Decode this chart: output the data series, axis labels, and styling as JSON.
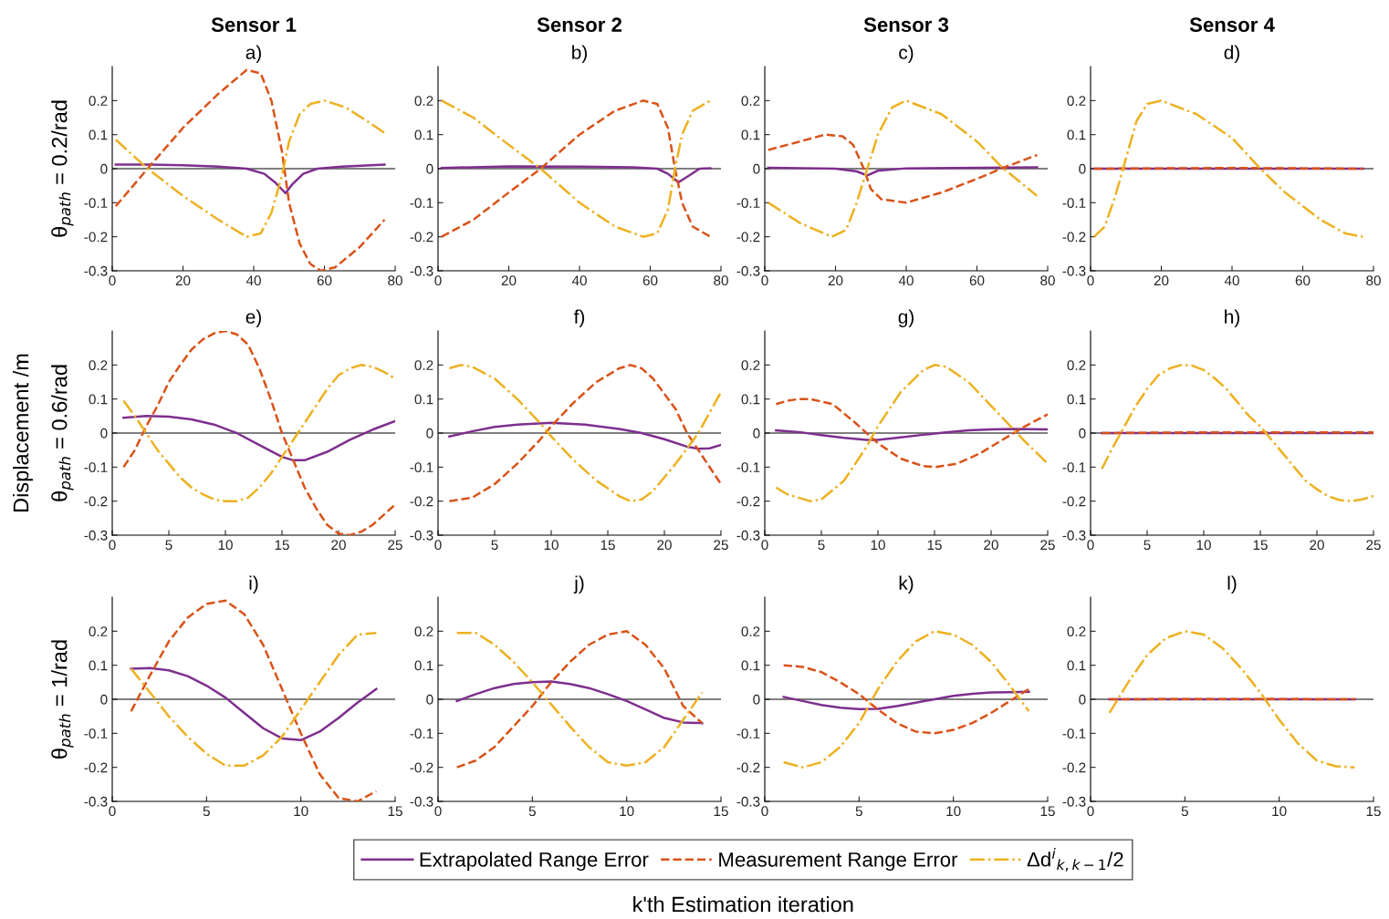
{
  "chart_data": [
    {
      "type": "line",
      "title": "Sensor 1",
      "subtitle": "a)",
      "ylabel": "θ$_{path}$ = 0.2/rad",
      "xlim": [
        0,
        80
      ],
      "xticks": [
        0,
        20,
        40,
        60,
        80
      ],
      "ylim": [
        -0.3,
        0.3
      ],
      "yticks": [
        -0.3,
        -0.2,
        -0.1,
        0,
        0.1,
        0.2
      ],
      "grid": false,
      "marker": "none",
      "ref_lines": [
        {
          "axis": "y",
          "value": 0,
          "color": "#000000"
        }
      ],
      "series": [
        {
          "color": "#7e2f8e",
          "line_style": "solid",
          "x": [
            1,
            10,
            20,
            30,
            38,
            43,
            46,
            49,
            51,
            54,
            58,
            65,
            77
          ],
          "values": [
            0.012,
            0.012,
            0.01,
            0.006,
            0.0,
            -0.015,
            -0.04,
            -0.072,
            -0.045,
            -0.015,
            0.0,
            0.006,
            0.012
          ]
        },
        {
          "color": "#d95319",
          "line_style": "dashed",
          "x": [
            1,
            10,
            20,
            30,
            38,
            42,
            45,
            48,
            50,
            53,
            56,
            59,
            63,
            70,
            77
          ],
          "values": [
            -0.11,
            0.0,
            0.12,
            0.22,
            0.29,
            0.28,
            0.2,
            0.05,
            -0.1,
            -0.22,
            -0.28,
            -0.3,
            -0.29,
            -0.23,
            -0.15
          ]
        },
        {
          "color": "#edb120",
          "line_style": "dashdot",
          "x": [
            1,
            10,
            20,
            30,
            38,
            42,
            45,
            48,
            50,
            53,
            56,
            60,
            66,
            72,
            77
          ],
          "values": [
            0.085,
            0.0,
            -0.08,
            -0.15,
            -0.2,
            -0.19,
            -0.13,
            -0.02,
            0.08,
            0.16,
            0.19,
            0.2,
            0.18,
            0.14,
            0.105
          ]
        }
      ]
    },
    {
      "type": "line",
      "title": "Sensor 2",
      "subtitle": "b)",
      "xlim": [
        0,
        80
      ],
      "xticks": [
        0,
        20,
        40,
        60,
        80
      ],
      "ylim": [
        -0.3,
        0.3
      ],
      "yticks": [
        -0.3,
        -0.2,
        -0.1,
        0,
        0.1,
        0.2
      ],
      "grid": false,
      "marker": "none",
      "ref_lines": [
        {
          "axis": "y",
          "value": 0,
          "color": "#000000"
        }
      ],
      "series": [
        {
          "color": "#7e2f8e",
          "line_style": "solid",
          "x": [
            1,
            20,
            40,
            55,
            62,
            65,
            68,
            71,
            74,
            77
          ],
          "values": [
            0.002,
            0.007,
            0.006,
            0.004,
            0.0,
            -0.015,
            -0.04,
            -0.02,
            0.0,
            0.001
          ]
        },
        {
          "color": "#d95319",
          "line_style": "dashed",
          "x": [
            1,
            10,
            20,
            29,
            40,
            50,
            58,
            62,
            65,
            67,
            69,
            72,
            77
          ],
          "values": [
            -0.2,
            -0.15,
            -0.07,
            0.0,
            0.1,
            0.17,
            0.2,
            0.19,
            0.12,
            0.0,
            -0.1,
            -0.17,
            -0.2
          ]
        },
        {
          "color": "#edb120",
          "line_style": "dashdot",
          "x": [
            1,
            10,
            20,
            29,
            40,
            50,
            58,
            62,
            65,
            67,
            69,
            72,
            77
          ],
          "values": [
            0.2,
            0.15,
            0.07,
            0.0,
            -0.1,
            -0.17,
            -0.2,
            -0.19,
            -0.12,
            0.0,
            0.1,
            0.17,
            0.2
          ]
        }
      ]
    },
    {
      "type": "line",
      "title": "Sensor 3",
      "subtitle": "c)",
      "xlim": [
        0,
        80
      ],
      "xticks": [
        0,
        20,
        40,
        60,
        80
      ],
      "ylim": [
        -0.3,
        0.3
      ],
      "yticks": [
        -0.3,
        -0.2,
        -0.1,
        0,
        0.1,
        0.2
      ],
      "grid": false,
      "marker": "none",
      "ref_lines": [
        {
          "axis": "y",
          "value": 0,
          "color": "#000000"
        }
      ],
      "series": [
        {
          "color": "#7e2f8e",
          "line_style": "solid",
          "x": [
            1,
            20,
            26,
            29,
            32,
            40,
            77
          ],
          "values": [
            0.003,
            0.0,
            -0.008,
            -0.02,
            -0.006,
            0.001,
            0.004
          ]
        },
        {
          "color": "#d95319",
          "line_style": "dashed",
          "x": [
            1,
            10,
            17,
            22,
            25,
            28,
            30,
            33,
            40,
            50,
            60,
            68,
            77
          ],
          "values": [
            0.055,
            0.08,
            0.1,
            0.095,
            0.07,
            0.0,
            -0.06,
            -0.09,
            -0.1,
            -0.07,
            -0.03,
            0.005,
            0.04
          ]
        },
        {
          "color": "#edb120",
          "line_style": "dashdot",
          "x": [
            1,
            10,
            19,
            23,
            26,
            29,
            32,
            36,
            40,
            50,
            60,
            67,
            77
          ],
          "values": [
            -0.1,
            -0.16,
            -0.2,
            -0.18,
            -0.1,
            0.0,
            0.1,
            0.18,
            0.2,
            0.16,
            0.08,
            0.005,
            -0.08
          ]
        }
      ]
    },
    {
      "type": "line",
      "title": "Sensor 4",
      "subtitle": "d)",
      "xlim": [
        0,
        80
      ],
      "xticks": [
        0,
        20,
        40,
        60,
        80
      ],
      "ylim": [
        -0.3,
        0.3
      ],
      "yticks": [
        -0.3,
        -0.2,
        -0.1,
        0,
        0.1,
        0.2
      ],
      "grid": false,
      "marker": "none",
      "ref_lines": [
        {
          "axis": "y",
          "value": 0,
          "color": "#000000"
        }
      ],
      "series": [
        {
          "color": "#7e2f8e",
          "line_style": "solid",
          "x": [
            1,
            77
          ],
          "values": [
            0.0,
            0.0
          ]
        },
        {
          "color": "#d95319",
          "line_style": "dashed",
          "x": [
            1,
            20,
            40,
            60,
            77
          ],
          "values": [
            0.0,
            0.001,
            0.002,
            0.001,
            0.0
          ]
        },
        {
          "color": "#edb120",
          "line_style": "dashdot",
          "x": [
            1,
            4,
            7,
            10,
            13,
            16,
            20,
            30,
            40,
            48,
            55,
            65,
            72,
            77
          ],
          "values": [
            -0.2,
            -0.17,
            -0.08,
            0.03,
            0.14,
            0.19,
            0.2,
            0.16,
            0.09,
            0.0,
            -0.07,
            -0.15,
            -0.19,
            -0.2
          ]
        }
      ]
    },
    {
      "type": "line",
      "title": "e)",
      "ylabel": "θ$_{path}$ = 0.6/rad",
      "annotations": [
        "Displacement /m"
      ],
      "xlim": [
        0,
        25
      ],
      "xticks": [
        0,
        5,
        10,
        15,
        20,
        25
      ],
      "ylim": [
        -0.3,
        0.3
      ],
      "yticks": [
        -0.3,
        -0.2,
        -0.1,
        0,
        0.1,
        0.2
      ],
      "grid": false,
      "marker": "none",
      "ref_lines": [
        {
          "axis": "y",
          "value": 0,
          "color": "#000000"
        }
      ],
      "series": [
        {
          "color": "#7e2f8e",
          "line_style": "solid",
          "x": [
            1,
            3,
            5,
            7,
            9,
            11,
            13,
            15,
            16,
            17,
            19,
            21,
            23,
            25
          ],
          "values": [
            0.045,
            0.05,
            0.048,
            0.04,
            0.025,
            0.0,
            -0.035,
            -0.07,
            -0.08,
            -0.08,
            -0.055,
            -0.02,
            0.01,
            0.035
          ]
        },
        {
          "color": "#d95319",
          "line_style": "dashed",
          "x": [
            1,
            2,
            3,
            4,
            5,
            6,
            7,
            8,
            9,
            10,
            11,
            12,
            13,
            14,
            15,
            16,
            17,
            18,
            19,
            20,
            21,
            22,
            23,
            24,
            25
          ],
          "values": [
            -0.1,
            -0.05,
            0.02,
            0.08,
            0.15,
            0.2,
            0.245,
            0.275,
            0.293,
            0.3,
            0.29,
            0.26,
            0.19,
            0.1,
            0.0,
            -0.08,
            -0.16,
            -0.22,
            -0.27,
            -0.295,
            -0.3,
            -0.29,
            -0.27,
            -0.24,
            -0.21
          ]
        },
        {
          "color": "#edb120",
          "line_style": "dashdot",
          "x": [
            1,
            2,
            3,
            4,
            5,
            6,
            7,
            8,
            9,
            10,
            11,
            12,
            13,
            14,
            15,
            16,
            17,
            18,
            19,
            20,
            21,
            22,
            23,
            24,
            25
          ],
          "values": [
            0.095,
            0.05,
            0.0,
            -0.05,
            -0.09,
            -0.13,
            -0.16,
            -0.18,
            -0.195,
            -0.2,
            -0.2,
            -0.19,
            -0.16,
            -0.12,
            -0.07,
            -0.02,
            0.03,
            0.08,
            0.13,
            0.17,
            0.19,
            0.2,
            0.195,
            0.18,
            0.16
          ]
        }
      ]
    },
    {
      "type": "line",
      "title": "f)",
      "xlim": [
        0,
        25
      ],
      "xticks": [
        0,
        5,
        10,
        15,
        20,
        25
      ],
      "ylim": [
        -0.3,
        0.3
      ],
      "yticks": [
        -0.3,
        -0.2,
        -0.1,
        0,
        0.1,
        0.2
      ],
      "grid": false,
      "marker": "none",
      "ref_lines": [
        {
          "axis": "y",
          "value": 0,
          "color": "#000000"
        }
      ],
      "series": [
        {
          "color": "#7e2f8e",
          "line_style": "solid",
          "x": [
            1,
            3,
            5,
            7,
            10,
            13,
            16,
            18,
            20,
            22,
            23,
            24,
            25
          ],
          "values": [
            -0.01,
            0.005,
            0.018,
            0.025,
            0.03,
            0.025,
            0.012,
            0.0,
            -0.018,
            -0.04,
            -0.046,
            -0.045,
            -0.035
          ]
        },
        {
          "color": "#d95319",
          "line_style": "dashed",
          "x": [
            1,
            3,
            5,
            7,
            9,
            10,
            12,
            14,
            16,
            17,
            18,
            19,
            21,
            22,
            23,
            25
          ],
          "values": [
            -0.2,
            -0.19,
            -0.15,
            -0.09,
            -0.02,
            0.02,
            0.09,
            0.15,
            0.19,
            0.2,
            0.19,
            0.16,
            0.07,
            0.0,
            -0.05,
            -0.15
          ]
        },
        {
          "color": "#edb120",
          "line_style": "dashdot",
          "x": [
            1,
            2,
            3,
            5,
            7,
            9,
            10,
            12,
            14,
            16,
            17,
            18,
            19,
            21,
            23,
            25
          ],
          "values": [
            0.19,
            0.2,
            0.195,
            0.16,
            0.1,
            0.03,
            -0.01,
            -0.08,
            -0.14,
            -0.185,
            -0.2,
            -0.195,
            -0.17,
            -0.09,
            0.0,
            0.12
          ]
        }
      ]
    },
    {
      "type": "line",
      "title": "g)",
      "xlim": [
        0,
        25
      ],
      "xticks": [
        0,
        5,
        10,
        15,
        20,
        25
      ],
      "ylim": [
        -0.3,
        0.3
      ],
      "yticks": [
        -0.3,
        -0.2,
        -0.1,
        0,
        0.1,
        0.2
      ],
      "grid": false,
      "marker": "none",
      "ref_lines": [
        {
          "axis": "y",
          "value": 0,
          "color": "#000000"
        }
      ],
      "series": [
        {
          "color": "#7e2f8e",
          "line_style": "solid",
          "x": [
            1,
            3,
            5,
            7,
            9,
            10,
            12,
            14,
            16,
            18,
            20,
            22,
            25
          ],
          "values": [
            0.008,
            0.003,
            -0.006,
            -0.014,
            -0.02,
            -0.02,
            -0.013,
            -0.005,
            0.002,
            0.008,
            0.011,
            0.012,
            0.011
          ]
        },
        {
          "color": "#d95319",
          "line_style": "dashed",
          "x": [
            1,
            2,
            3,
            4,
            6,
            8,
            10,
            12,
            14,
            15,
            17,
            19,
            21,
            23,
            25
          ],
          "values": [
            0.085,
            0.095,
            0.1,
            0.1,
            0.085,
            0.03,
            -0.03,
            -0.075,
            -0.097,
            -0.1,
            -0.09,
            -0.06,
            -0.02,
            0.02,
            0.055
          ]
        },
        {
          "color": "#edb120",
          "line_style": "dashdot",
          "x": [
            1,
            2,
            4,
            5,
            7,
            9,
            10,
            12,
            14,
            15,
            16,
            18,
            20,
            22,
            23,
            25
          ],
          "values": [
            -0.16,
            -0.18,
            -0.2,
            -0.195,
            -0.14,
            -0.04,
            0.02,
            0.12,
            0.185,
            0.2,
            0.195,
            0.15,
            0.08,
            0.01,
            -0.025,
            -0.09
          ]
        }
      ]
    },
    {
      "type": "line",
      "title": "h)",
      "xlim": [
        0,
        25
      ],
      "xticks": [
        0,
        5,
        10,
        15,
        20,
        25
      ],
      "ylim": [
        -0.3,
        0.3
      ],
      "yticks": [
        -0.3,
        -0.2,
        -0.1,
        0,
        0.1,
        0.2
      ],
      "grid": false,
      "marker": "none",
      "ref_lines": [
        {
          "axis": "y",
          "value": 0,
          "color": "#000000"
        }
      ],
      "series": [
        {
          "color": "#7e2f8e",
          "line_style": "solid",
          "x": [
            1,
            25
          ],
          "values": [
            0.0,
            0.0
          ]
        },
        {
          "color": "#d95319",
          "line_style": "dashed",
          "x": [
            1,
            9,
            25
          ],
          "values": [
            0.0,
            0.002,
            0.002
          ]
        },
        {
          "color": "#edb120",
          "line_style": "dashdot",
          "x": [
            1,
            2,
            3,
            4,
            5,
            6,
            7,
            8,
            9,
            10,
            11,
            12,
            13,
            14,
            15,
            16,
            17,
            18,
            19,
            20,
            21,
            22,
            23,
            24,
            25
          ],
          "values": [
            -0.105,
            -0.04,
            0.02,
            0.08,
            0.13,
            0.17,
            0.19,
            0.2,
            0.198,
            0.185,
            0.16,
            0.13,
            0.09,
            0.05,
            0.02,
            -0.02,
            -0.06,
            -0.1,
            -0.14,
            -0.165,
            -0.185,
            -0.197,
            -0.2,
            -0.195,
            -0.185
          ]
        }
      ]
    },
    {
      "type": "line",
      "title": "i)",
      "ylabel": "θ$_{path}$ = 1/rad",
      "xlim": [
        0,
        15
      ],
      "xticks": [
        0,
        5,
        10,
        15
      ],
      "ylim": [
        -0.3,
        0.3
      ],
      "yticks": [
        -0.3,
        -0.2,
        -0.1,
        0,
        0.1,
        0.2
      ],
      "grid": false,
      "marker": "none",
      "ref_lines": [
        {
          "axis": "y",
          "value": 0,
          "color": "#000000"
        }
      ],
      "series": [
        {
          "color": "#7e2f8e",
          "line_style": "solid",
          "x": [
            1,
            2,
            3,
            4,
            5,
            6,
            7,
            8,
            9,
            10,
            11,
            12,
            13,
            14
          ],
          "values": [
            0.09,
            0.092,
            0.085,
            0.068,
            0.04,
            0.005,
            -0.04,
            -0.085,
            -0.115,
            -0.12,
            -0.095,
            -0.055,
            -0.01,
            0.03
          ]
        },
        {
          "color": "#d95319",
          "line_style": "dashed",
          "x": [
            1,
            2,
            3,
            4,
            5,
            6,
            7,
            8,
            9,
            10,
            11,
            12,
            13,
            14
          ],
          "values": [
            -0.035,
            0.07,
            0.17,
            0.24,
            0.28,
            0.29,
            0.25,
            0.16,
            0.03,
            -0.1,
            -0.22,
            -0.29,
            -0.3,
            -0.27
          ]
        },
        {
          "color": "#edb120",
          "line_style": "dashdot",
          "x": [
            1,
            2,
            3,
            4,
            5,
            6,
            7,
            8,
            9,
            10,
            11,
            12,
            13,
            14
          ],
          "values": [
            0.09,
            0.02,
            -0.05,
            -0.11,
            -0.16,
            -0.195,
            -0.195,
            -0.165,
            -0.11,
            -0.03,
            0.05,
            0.13,
            0.19,
            0.195
          ]
        }
      ]
    },
    {
      "type": "line",
      "title": "j)",
      "xlim": [
        0,
        15
      ],
      "xticks": [
        0,
        5,
        10,
        15
      ],
      "ylim": [
        -0.3,
        0.3
      ],
      "yticks": [
        -0.3,
        -0.2,
        -0.1,
        0,
        0.1,
        0.2
      ],
      "grid": false,
      "marker": "none",
      "ref_lines": [
        {
          "axis": "y",
          "value": 0,
          "color": "#000000"
        }
      ],
      "series": [
        {
          "color": "#7e2f8e",
          "line_style": "solid",
          "x": [
            1,
            2,
            3,
            4,
            5,
            6,
            7,
            8,
            9,
            10,
            11,
            12,
            13,
            14
          ],
          "values": [
            -0.005,
            0.015,
            0.033,
            0.045,
            0.05,
            0.052,
            0.045,
            0.033,
            0.015,
            -0.005,
            -0.03,
            -0.055,
            -0.068,
            -0.07
          ]
        },
        {
          "color": "#d95319",
          "line_style": "dashed",
          "x": [
            1,
            2,
            3,
            4,
            5,
            6,
            7,
            8,
            9,
            10,
            11,
            12,
            13,
            14
          ],
          "values": [
            -0.2,
            -0.18,
            -0.14,
            -0.08,
            -0.02,
            0.05,
            0.11,
            0.16,
            0.19,
            0.2,
            0.16,
            0.09,
            -0.02,
            -0.07
          ]
        },
        {
          "color": "#edb120",
          "line_style": "dashdot",
          "x": [
            1,
            2,
            3,
            4,
            5,
            6,
            7,
            8,
            9,
            10,
            11,
            12,
            13,
            14
          ],
          "values": [
            0.195,
            0.195,
            0.16,
            0.11,
            0.05,
            -0.015,
            -0.08,
            -0.14,
            -0.185,
            -0.195,
            -0.185,
            -0.14,
            -0.06,
            0.02
          ]
        }
      ]
    },
    {
      "type": "line",
      "title": "k)",
      "xlim": [
        0,
        15
      ],
      "xticks": [
        0,
        5,
        10,
        15
      ],
      "ylim": [
        -0.3,
        0.3
      ],
      "yticks": [
        -0.3,
        -0.2,
        -0.1,
        0,
        0.1,
        0.2
      ],
      "grid": false,
      "marker": "none",
      "ref_lines": [
        {
          "axis": "y",
          "value": 0,
          "color": "#000000"
        }
      ],
      "series": [
        {
          "color": "#7e2f8e",
          "line_style": "solid",
          "x": [
            1,
            2,
            3,
            4,
            5,
            6,
            7,
            8,
            9,
            10,
            11,
            12,
            13,
            14
          ],
          "values": [
            0.007,
            -0.005,
            -0.017,
            -0.025,
            -0.029,
            -0.028,
            -0.02,
            -0.01,
            0.0,
            0.01,
            0.016,
            0.02,
            0.021,
            0.022
          ]
        },
        {
          "color": "#d95319",
          "line_style": "dashed",
          "x": [
            1,
            2,
            3,
            4,
            5,
            6,
            7,
            8,
            9,
            10,
            11,
            12,
            13,
            14
          ],
          "values": [
            0.1,
            0.095,
            0.08,
            0.05,
            0.015,
            -0.03,
            -0.07,
            -0.095,
            -0.1,
            -0.09,
            -0.07,
            -0.04,
            -0.005,
            0.03
          ]
        },
        {
          "color": "#edb120",
          "line_style": "dashdot",
          "x": [
            1,
            2,
            3,
            4,
            5,
            6,
            7,
            8,
            9,
            10,
            11,
            12,
            13,
            14
          ],
          "values": [
            -0.185,
            -0.2,
            -0.185,
            -0.14,
            -0.07,
            0.03,
            0.11,
            0.17,
            0.2,
            0.19,
            0.16,
            0.11,
            0.04,
            -0.035
          ]
        }
      ]
    },
    {
      "type": "line",
      "title": "l)",
      "annotations": [
        "k'th Estimation iteration"
      ],
      "legend": "bottom",
      "xlim": [
        0,
        15
      ],
      "xticks": [
        0,
        5,
        10,
        15
      ],
      "ylim": [
        -0.3,
        0.3
      ],
      "yticks": [
        -0.3,
        -0.2,
        -0.1,
        0,
        0.1,
        0.2
      ],
      "grid": false,
      "marker": "none",
      "ref_lines": [
        {
          "axis": "y",
          "value": 0,
          "color": "#000000"
        }
      ],
      "series": [
        {
          "name": "Extrapolated Range Error",
          "color": "#7e2f8e",
          "line_style": "solid",
          "x": [
            1,
            14
          ],
          "values": [
            0.0,
            0.0
          ]
        },
        {
          "name": "Measurement Range Error",
          "color": "#d95319",
          "line_style": "dashed",
          "x": [
            1,
            7,
            14
          ],
          "values": [
            0.0,
            0.001,
            0.0
          ]
        },
        {
          "name": "Δd$^{i}$$_{k,k−1}$/2",
          "color": "#edb120",
          "line_style": "dashdot",
          "x": [
            1,
            2,
            3,
            4,
            5,
            6,
            7,
            8,
            9,
            10,
            11,
            12,
            13,
            14
          ],
          "values": [
            -0.04,
            0.05,
            0.13,
            0.18,
            0.2,
            0.19,
            0.15,
            0.09,
            0.02,
            -0.06,
            -0.13,
            -0.18,
            -0.197,
            -0.2
          ]
        }
      ]
    }
  ]
}
